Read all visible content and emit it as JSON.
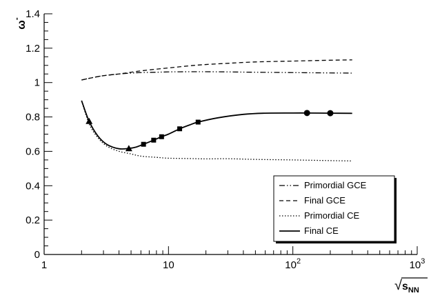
{
  "chart_data": {
    "type": "line",
    "title": "",
    "xlabel": "sNN",
    "xlabel_display": {
      "sqrt_symbol": "√",
      "base": "s",
      "subscript": "NN"
    },
    "ylabel": "ω",
    "ylabel_display": {
      "base": "ω",
      "superscript": "-"
    },
    "xscale": "log",
    "xlim": [
      1,
      1000
    ],
    "ylim": [
      0,
      1.4
    ],
    "x_ticks": [
      {
        "value": 1,
        "base": "1",
        "exp": ""
      },
      {
        "value": 10,
        "base": "10",
        "exp": ""
      },
      {
        "value": 100,
        "base": "10",
        "exp": "2"
      },
      {
        "value": 1000,
        "base": "10",
        "exp": "3"
      }
    ],
    "y_ticks": [
      {
        "value": 0,
        "label": "0"
      },
      {
        "value": 0.2,
        "label": "0.2"
      },
      {
        "value": 0.4,
        "label": "0.4"
      },
      {
        "value": 0.6,
        "label": "0.6"
      },
      {
        "value": 0.8,
        "label": "0.8"
      },
      {
        "value": 1.0,
        "label": "1"
      },
      {
        "value": 1.2,
        "label": "1.2"
      },
      {
        "value": 1.4,
        "label": "1.4"
      }
    ],
    "legend_position": "bottom-right",
    "series": [
      {
        "name": "Primordial GCE",
        "style": "dash-dot-dot",
        "x": [
          2.0,
          2.5,
          3,
          4,
          5,
          6,
          8,
          10,
          15,
          20,
          30,
          50,
          100,
          200,
          300
        ],
        "y": [
          1.015,
          1.03,
          1.04,
          1.05,
          1.055,
          1.058,
          1.06,
          1.062,
          1.063,
          1.063,
          1.062,
          1.06,
          1.058,
          1.056,
          1.055
        ]
      },
      {
        "name": "Final GCE",
        "style": "dashed",
        "x": [
          2.0,
          2.5,
          3,
          4,
          5,
          6,
          8,
          10,
          15,
          20,
          30,
          50,
          100,
          200,
          300
        ],
        "y": [
          1.015,
          1.03,
          1.04,
          1.05,
          1.06,
          1.068,
          1.078,
          1.085,
          1.098,
          1.105,
          1.112,
          1.12,
          1.125,
          1.13,
          1.132
        ]
      },
      {
        "name": "Primordial CE",
        "style": "dotted",
        "x": [
          2.0,
          2.3,
          2.7,
          3.2,
          4,
          5,
          6,
          8,
          10,
          15,
          20,
          30,
          50,
          100,
          200,
          300
        ],
        "y": [
          0.895,
          0.76,
          0.68,
          0.63,
          0.6,
          0.585,
          0.572,
          0.565,
          0.56,
          0.558,
          0.556,
          0.557,
          0.553,
          0.55,
          0.546,
          0.544
        ]
      },
      {
        "name": "Final CE",
        "style": "solid",
        "x": [
          2.0,
          2.3,
          2.7,
          3.2,
          4,
          4.8,
          5.5,
          6.3,
          7.6,
          8.8,
          10,
          12.3,
          15,
          17.3,
          25,
          40,
          60,
          100,
          130,
          200,
          300
        ],
        "y": [
          0.895,
          0.775,
          0.69,
          0.64,
          0.615,
          0.617,
          0.625,
          0.641,
          0.665,
          0.685,
          0.7,
          0.731,
          0.755,
          0.77,
          0.795,
          0.815,
          0.822,
          0.823,
          0.823,
          0.822,
          0.821
        ]
      }
    ],
    "markers": [
      {
        "shape": "triangle",
        "x": [
          2.3,
          4.8
        ],
        "y": [
          0.775,
          0.617
        ]
      },
      {
        "shape": "square",
        "x": [
          6.3,
          7.6,
          8.8,
          12.3,
          17.3
        ],
        "y": [
          0.641,
          0.665,
          0.685,
          0.731,
          0.77
        ]
      },
      {
        "shape": "circle",
        "x": [
          130,
          200
        ],
        "y": [
          0.823,
          0.822
        ]
      }
    ]
  }
}
